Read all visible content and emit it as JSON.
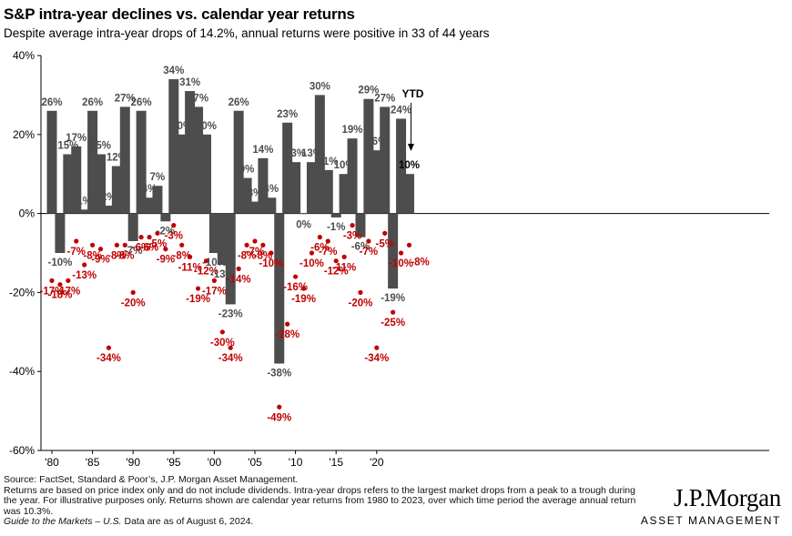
{
  "title": "S&P intra-year declines vs. calendar year returns",
  "subtitle": "Despite average intra-year drops of 14.2%, annual returns were positive in 33 of 44 years",
  "footer": {
    "line1": "Source: FactSet, Standard & Poor’s, J.P. Morgan Asset Management.",
    "line2": "Returns are based on price index only and do not include dividends. Intra-year drops refers to the largest market drops from a peak to a trough during the year. For illustrative purposes only. Returns shown are calendar year returns from 1980 to 2023, over which time period the average annual return was 10.3%.",
    "guide": "Guide to the Markets – U.S.",
    "date_note": " Data are as of August 6, 2024."
  },
  "logo": {
    "name": "J.P.Morgan",
    "tagline": "ASSET MANAGEMENT"
  },
  "chart_data": {
    "type": "bar",
    "years": [
      1980,
      1981,
      1982,
      1983,
      1984,
      1985,
      1986,
      1987,
      1988,
      1989,
      1990,
      1991,
      1992,
      1993,
      1994,
      1995,
      1996,
      1997,
      1998,
      1999,
      2000,
      2001,
      2002,
      2003,
      2004,
      2005,
      2006,
      2007,
      2008,
      2009,
      2010,
      2011,
      2012,
      2013,
      2014,
      2015,
      2016,
      2017,
      2018,
      2019,
      2020,
      2021,
      2022,
      2023,
      2024
    ],
    "annual_returns": [
      26,
      -10,
      15,
      17,
      1,
      26,
      15,
      2,
      12,
      27,
      -7,
      26,
      4,
      7,
      -2,
      34,
      20,
      31,
      27,
      20,
      -10,
      -13,
      -23,
      26,
      9,
      3,
      14,
      4,
      -38,
      23,
      13,
      0,
      13,
      30,
      11,
      -1,
      10,
      19,
      -6,
      29,
      16,
      27,
      -19,
      24,
      10
    ],
    "annual_return_labels": [
      "26%",
      "-10%",
      "15%",
      "17%",
      "1%",
      "26%",
      "15%",
      "2%",
      "12%",
      "27%",
      "-7%",
      "26%",
      "4%",
      "7%",
      "-2%",
      "34%",
      "20%",
      "31%",
      "27%",
      "20%",
      "-10%",
      "-13%",
      "-23%",
      "26%",
      "9%",
      "3%",
      "14%",
      "4%",
      "-38%",
      "23%",
      "13%",
      "0%",
      "13%",
      "30%",
      "11%",
      "-1%",
      "10%",
      "19%",
      "-6%",
      "29%",
      "16%",
      "27%",
      "-19%",
      "24%",
      "10%"
    ],
    "intra_year_declines": [
      -17,
      -18,
      -17,
      -7,
      -13,
      -8,
      -9,
      -34,
      -8,
      -8,
      -20,
      -6,
      -6,
      -5,
      -9,
      -3,
      -8,
      -11,
      -19,
      -12,
      -17,
      -30,
      -34,
      -14,
      -8,
      -7,
      -8,
      -10,
      -49,
      -28,
      -16,
      -19,
      -10,
      -6,
      -7,
      -12,
      -11,
      -3,
      -20,
      -7,
      -34,
      -5,
      -25,
      -10,
      -8
    ],
    "intra_year_decline_labels": [
      "-17%",
      "-18%",
      "-17%",
      "-7%",
      "-13%",
      "-8%",
      "-9%",
      "-34%",
      "-8%",
      "-8%",
      "-20%",
      "-6%",
      "-6%",
      "-5%",
      "-9%",
      "-3%",
      "-8%",
      "-11%",
      "-19%",
      "-12%",
      "-17%",
      "-30%",
      "-34%",
      "-14%",
      "-8%",
      "-7%",
      "-8%",
      "-10%",
      "-49%",
      "-28%",
      "-16%",
      "-19%",
      "-10%",
      "-6%",
      "-7%",
      "-12%",
      "-11%",
      "-3%",
      "-20%",
      "-7%",
      "-34%",
      "-5%",
      "-25%",
      "-10%",
      "-8%"
    ],
    "x_tick_labels": [
      {
        "year": 1980,
        "label": "'80"
      },
      {
        "year": 1985,
        "label": "'85"
      },
      {
        "year": 1990,
        "label": "'90"
      },
      {
        "year": 1995,
        "label": "'95"
      },
      {
        "year": 2000,
        "label": "'00"
      },
      {
        "year": 2005,
        "label": "'05"
      },
      {
        "year": 2010,
        "label": "'10"
      },
      {
        "year": 2015,
        "label": "'15"
      },
      {
        "year": 2020,
        "label": "'20"
      }
    ],
    "y_ticks": [
      40,
      20,
      0,
      -20,
      -40,
      -60
    ],
    "y_tick_labels": [
      "40%",
      "20%",
      "0%",
      "-20%",
      "-40%",
      "-60%"
    ],
    "ylim": [
      -60,
      40
    ],
    "ytd_label": "YTD",
    "colors": {
      "bar": "#4d4d4d",
      "dot": "#c00000",
      "dot_label": "#c00000",
      "bar_label": "#4d4d4d"
    }
  }
}
